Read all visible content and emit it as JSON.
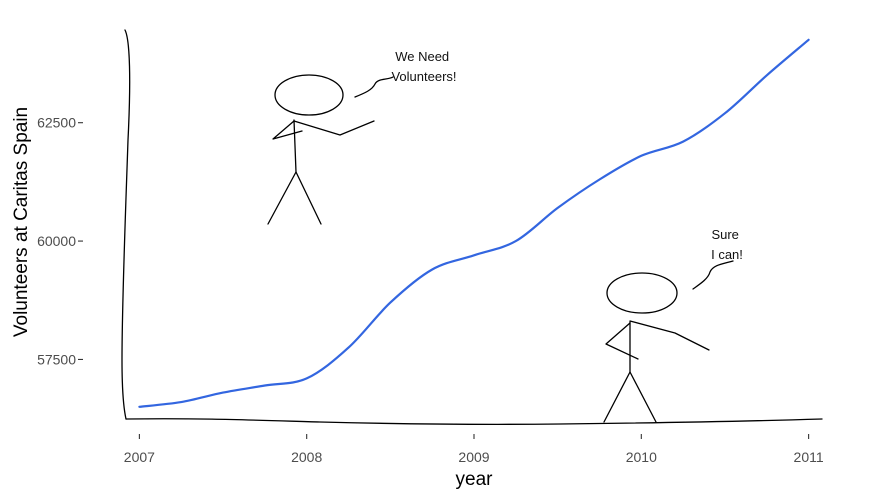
{
  "chart_data": {
    "type": "line",
    "xlabel": "year",
    "ylabel": "Volunteers at Caritas Spain",
    "xlim": [
      2006.92,
      2011.08
    ],
    "ylim": [
      56200,
      64500
    ],
    "x_ticks": [
      2007,
      2008,
      2009,
      2010,
      2011
    ],
    "x_tick_labels": [
      "2007",
      "2008",
      "2009",
      "2010",
      "2011"
    ],
    "y_ticks": [
      57500,
      60000,
      62500
    ],
    "y_tick_labels": [
      "57500",
      "60000",
      "62500"
    ],
    "grid": false,
    "legend": "none",
    "series": [
      {
        "color": "#3366e0",
        "x": [
          2007,
          2007.25,
          2007.5,
          2007.75,
          2008,
          2008.25,
          2008.5,
          2008.75,
          2009,
          2009.25,
          2009.5,
          2009.75,
          2010,
          2010.25,
          2010.5,
          2010.75,
          2011
        ],
        "y": [
          56500,
          56600,
          56800,
          56950,
          57100,
          57750,
          58700,
          59400,
          59700,
          60000,
          60700,
          61300,
          61800,
          62100,
          62700,
          63500,
          64250
        ]
      }
    ],
    "annotations": [
      {
        "text_lines": [
          "We Need",
          "Volunteers!"
        ]
      },
      {
        "text_lines": [
          "Sure",
          "I can!"
        ]
      }
    ]
  }
}
